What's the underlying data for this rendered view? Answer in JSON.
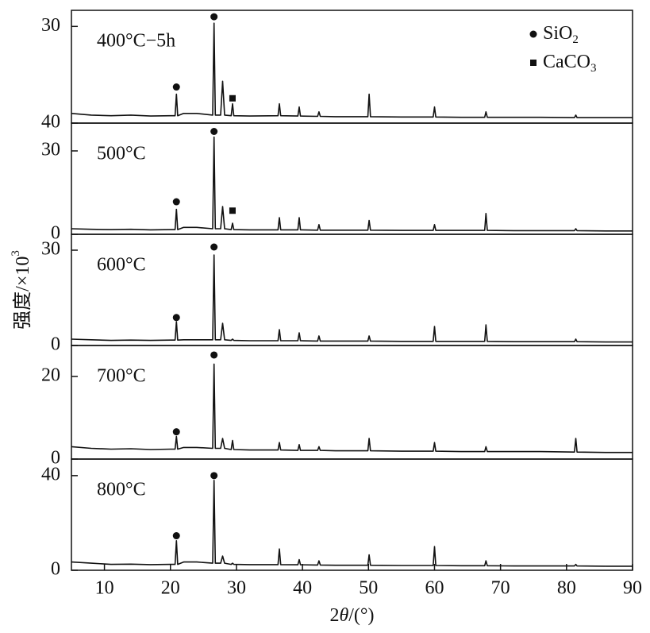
{
  "y_label": {
    "text": "强度/×10",
    "sup": "3"
  },
  "chart_data": [
    {
      "type": "line",
      "annotation": "400°C−5h",
      "x": [
        5,
        8,
        11,
        14,
        17,
        20,
        20.7,
        20.9,
        21.1,
        22,
        24,
        26.4,
        26.6,
        26.8,
        27.6,
        27.9,
        28.2,
        29.2,
        29.4,
        29.6,
        32,
        36.3,
        36.5,
        36.7,
        39.3,
        39.5,
        39.7,
        42.3,
        42.5,
        42.7,
        45,
        49.9,
        50.1,
        50.3,
        55,
        59.8,
        60,
        60.2,
        64,
        67.6,
        67.8,
        68,
        72,
        76,
        81.2,
        81.4,
        81.6,
        86,
        90
      ],
      "values": [
        3,
        2.5,
        2.3,
        2.5,
        2.2,
        2.3,
        2.3,
        9,
        2.3,
        3,
        3,
        2.5,
        31,
        2.5,
        2.5,
        13,
        2.5,
        2.3,
        6,
        2.3,
        2.2,
        2.3,
        6,
        2.3,
        2.2,
        5,
        2.2,
        2.1,
        3.5,
        2.1,
        2,
        2,
        9,
        2,
        1.9,
        1.9,
        5,
        1.9,
        1.8,
        1.8,
        3.5,
        1.8,
        1.8,
        1.8,
        1.7,
        2.5,
        1.7,
        1.7,
        1.7
      ],
      "xlim": [
        5,
        90
      ],
      "ylim": [
        0,
        35
      ],
      "yticks": [
        {
          "value": 0,
          "label": "40"
        },
        30
      ],
      "markers": [
        {
          "x": 20.9,
          "y": 11.2,
          "shape": "circle"
        },
        {
          "x": 26.6,
          "y": 33,
          "shape": "circle"
        },
        {
          "x": 29.4,
          "y": 7.7,
          "shape": "square"
        }
      ],
      "legend": [
        {
          "name": "SiO",
          "sub": "2",
          "shape": "circle"
        },
        {
          "name": "CaCO",
          "sub": "3",
          "shape": "square"
        }
      ]
    },
    {
      "type": "line",
      "annotation": "500°C",
      "x": [
        5,
        8,
        11,
        14,
        17,
        20,
        20.7,
        20.9,
        21.1,
        22,
        24,
        26.4,
        26.6,
        26.8,
        27.6,
        27.9,
        28.2,
        29.2,
        29.4,
        29.6,
        32,
        36.3,
        36.5,
        36.7,
        39.3,
        39.5,
        39.7,
        42.3,
        42.5,
        42.7,
        45,
        49.9,
        50.1,
        50.3,
        55,
        59.8,
        60,
        60.2,
        64,
        67.6,
        67.8,
        68,
        72,
        76,
        81.2,
        81.4,
        81.6,
        86,
        90
      ],
      "values": [
        2,
        1.8,
        1.7,
        1.8,
        1.6,
        1.7,
        1.7,
        9,
        1.7,
        2.5,
        2.5,
        2,
        35,
        2,
        2,
        10,
        2,
        1.7,
        4,
        1.7,
        1.6,
        1.6,
        6,
        1.6,
        1.6,
        6,
        1.6,
        1.5,
        3.5,
        1.5,
        1.5,
        1.5,
        5,
        1.5,
        1.4,
        1.4,
        3.5,
        1.4,
        1.4,
        1.4,
        7.5,
        1.4,
        1.3,
        1.3,
        1.3,
        2,
        1.3,
        1.2,
        1.2
      ],
      "xlim": [
        5,
        90
      ],
      "ylim": [
        0,
        40
      ],
      "yticks": [
        0,
        30
      ],
      "markers": [
        {
          "x": 20.9,
          "y": 11.7,
          "shape": "circle"
        },
        {
          "x": 26.6,
          "y": 37,
          "shape": "circle"
        },
        {
          "x": 29.4,
          "y": 8.5,
          "shape": "square"
        }
      ]
    },
    {
      "type": "line",
      "annotation": "600°C",
      "x": [
        5,
        8,
        11,
        14,
        17,
        20,
        20.7,
        20.9,
        21.1,
        22,
        24,
        26.4,
        26.6,
        26.8,
        27.6,
        27.9,
        28.2,
        29.2,
        29.4,
        29.6,
        32,
        36.3,
        36.5,
        36.7,
        39.3,
        39.5,
        39.7,
        42.3,
        42.5,
        42.7,
        45,
        49.9,
        50.1,
        50.3,
        55,
        59.8,
        60,
        60.2,
        64,
        67.6,
        67.8,
        68,
        72,
        76,
        81.2,
        81.4,
        81.6,
        86,
        90
      ],
      "values": [
        2,
        1.8,
        1.6,
        1.7,
        1.6,
        1.7,
        1.7,
        7.5,
        1.7,
        1.8,
        1.8,
        1.8,
        28.5,
        1.8,
        1.8,
        7,
        1.8,
        1.6,
        2,
        1.6,
        1.5,
        1.5,
        5,
        1.5,
        1.5,
        4,
        1.5,
        1.4,
        3,
        1.4,
        1.4,
        1.4,
        3,
        1.4,
        1.3,
        1.3,
        6,
        1.3,
        1.3,
        1.3,
        6.5,
        1.3,
        1.2,
        1.2,
        1.2,
        2,
        1.2,
        1.1,
        1.1
      ],
      "xlim": [
        5,
        90
      ],
      "ylim": [
        0,
        35
      ],
      "yticks": [
        0,
        30
      ],
      "markers": [
        {
          "x": 20.9,
          "y": 8.8,
          "shape": "circle"
        },
        {
          "x": 26.6,
          "y": 31,
          "shape": "circle"
        }
      ]
    },
    {
      "type": "line",
      "annotation": "700°C",
      "x": [
        5,
        8,
        11,
        14,
        17,
        20,
        20.7,
        20.9,
        21.1,
        22,
        24,
        26.4,
        26.6,
        26.8,
        27.6,
        27.9,
        28.2,
        29.2,
        29.4,
        29.6,
        32,
        36.3,
        36.5,
        36.7,
        39.3,
        39.5,
        39.7,
        42.3,
        42.5,
        42.7,
        45,
        49.9,
        50.1,
        50.3,
        55,
        59.8,
        60,
        60.2,
        64,
        67.6,
        67.8,
        68,
        72,
        76,
        81.2,
        81.4,
        81.6,
        86,
        90
      ],
      "values": [
        3,
        2.6,
        2.4,
        2.5,
        2.3,
        2.4,
        2.4,
        5.5,
        2.4,
        2.8,
        2.8,
        2.6,
        23,
        2.6,
        2.6,
        5,
        2.6,
        2.3,
        4.5,
        2.3,
        2.2,
        2.2,
        4,
        2.2,
        2.1,
        3.5,
        2.1,
        2.1,
        3,
        2.1,
        2,
        2,
        5,
        2,
        1.9,
        1.9,
        4,
        1.9,
        1.8,
        1.8,
        3,
        1.8,
        1.8,
        1.8,
        1.7,
        5,
        1.7,
        1.6,
        1.6
      ],
      "xlim": [
        5,
        90
      ],
      "ylim": [
        0,
        27.5
      ],
      "yticks": [
        0,
        20
      ],
      "markers": [
        {
          "x": 20.9,
          "y": 6.6,
          "shape": "circle"
        },
        {
          "x": 26.6,
          "y": 25.2,
          "shape": "circle"
        }
      ]
    },
    {
      "type": "line",
      "annotation": "800°C",
      "x": [
        5,
        8,
        11,
        14,
        17,
        20,
        20.7,
        20.9,
        21.1,
        22,
        24,
        26.4,
        26.6,
        26.8,
        27.6,
        27.9,
        28.2,
        29.2,
        29.4,
        29.6,
        32,
        36.3,
        36.5,
        36.7,
        39.3,
        39.5,
        39.7,
        42.3,
        42.5,
        42.7,
        45,
        49.9,
        50.1,
        50.3,
        55,
        59.8,
        60,
        60.2,
        64,
        67.6,
        67.8,
        68,
        72,
        76,
        81.2,
        81.4,
        81.6,
        86,
        90
      ],
      "values": [
        3.5,
        3,
        2.5,
        2.6,
        2.4,
        2.5,
        2.5,
        12.5,
        2.5,
        3.5,
        3.5,
        3,
        38,
        3,
        3,
        6,
        3,
        2.5,
        3,
        2.5,
        2.4,
        2.4,
        9,
        2.4,
        2.3,
        4.5,
        2.3,
        2.2,
        4,
        2.2,
        2.1,
        2.1,
        6.5,
        2.1,
        2,
        2,
        10,
        2,
        1.9,
        1.9,
        4,
        1.9,
        1.8,
        1.8,
        1.8,
        2.5,
        1.8,
        1.7,
        1.7
      ],
      "xlim": [
        5,
        90
      ],
      "ylim": [
        0,
        47
      ],
      "yticks": [
        0,
        40
      ],
      "xticks": [
        10,
        20,
        30,
        40,
        50,
        60,
        70,
        80,
        90
      ],
      "x_label": {
        "text": "2",
        "italic": "θ",
        "rest": "/(°)"
      },
      "markers": [
        {
          "x": 20.9,
          "y": 14.6,
          "shape": "circle"
        },
        {
          "x": 26.6,
          "y": 40,
          "shape": "circle"
        }
      ]
    }
  ]
}
